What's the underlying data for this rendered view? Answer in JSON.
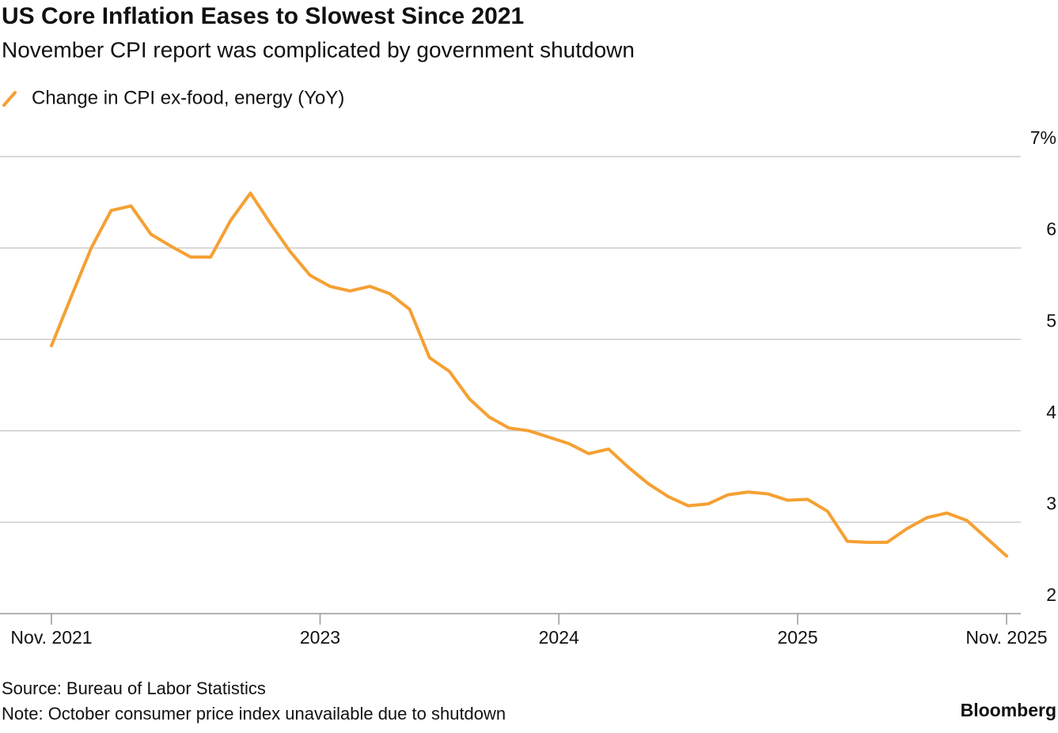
{
  "chart_data": {
    "type": "line",
    "title": "US Core Inflation Eases to Slowest Since 2021",
    "subtitle": "November CPI report was complicated by government shutdown",
    "source": "Source: Bureau of Labor Statistics",
    "note": "Note: October consumer price index unavailable due to shutdown",
    "brand": "Bloomberg",
    "x": [
      "2021-11",
      "2021-12",
      "2022-01",
      "2022-02",
      "2022-03",
      "2022-04",
      "2022-05",
      "2022-06",
      "2022-07",
      "2022-08",
      "2022-09",
      "2022-10",
      "2022-11",
      "2022-12",
      "2023-01",
      "2023-02",
      "2023-03",
      "2023-04",
      "2023-05",
      "2023-06",
      "2023-07",
      "2023-08",
      "2023-09",
      "2023-10",
      "2023-11",
      "2023-12",
      "2024-01",
      "2024-02",
      "2024-03",
      "2024-04",
      "2024-05",
      "2024-06",
      "2024-07",
      "2024-08",
      "2024-09",
      "2024-10",
      "2024-11",
      "2024-12",
      "2025-01",
      "2025-02",
      "2025-03",
      "2025-04",
      "2025-05",
      "2025-06",
      "2025-07",
      "2025-08",
      "2025-09",
      "2025-11"
    ],
    "series": [
      {
        "name": "Change in CPI ex-food, energy (YoY)",
        "color": "#f5a033",
        "values": [
          4.93,
          5.47,
          6.0,
          6.41,
          6.46,
          6.15,
          6.02,
          5.9,
          5.9,
          6.3,
          6.6,
          6.27,
          5.96,
          5.7,
          5.58,
          5.53,
          5.58,
          5.5,
          5.33,
          4.8,
          4.65,
          4.35,
          4.15,
          4.03,
          4.0,
          3.93,
          3.86,
          3.75,
          3.8,
          3.6,
          3.42,
          3.28,
          3.18,
          3.2,
          3.3,
          3.33,
          3.31,
          3.24,
          3.25,
          3.12,
          2.79,
          2.78,
          2.78,
          2.93,
          3.05,
          3.1,
          3.02,
          2.63
        ]
      }
    ],
    "xlim": [
      "2021-11",
      "2025-11"
    ],
    "xticks": [
      {
        "value": "2021-11",
        "label": "Nov. 2021"
      },
      {
        "value": "2023",
        "label": "2023"
      },
      {
        "value": "2024",
        "label": "2024"
      },
      {
        "value": "2025",
        "label": "2025"
      },
      {
        "value": "2025-11",
        "label": "Nov. 2025"
      }
    ],
    "ylim": [
      2,
      7
    ],
    "yticks": [
      2,
      3,
      4,
      5,
      6,
      {
        "value": 7,
        "label": "7%"
      }
    ],
    "grid": true,
    "legend": "top-left"
  }
}
